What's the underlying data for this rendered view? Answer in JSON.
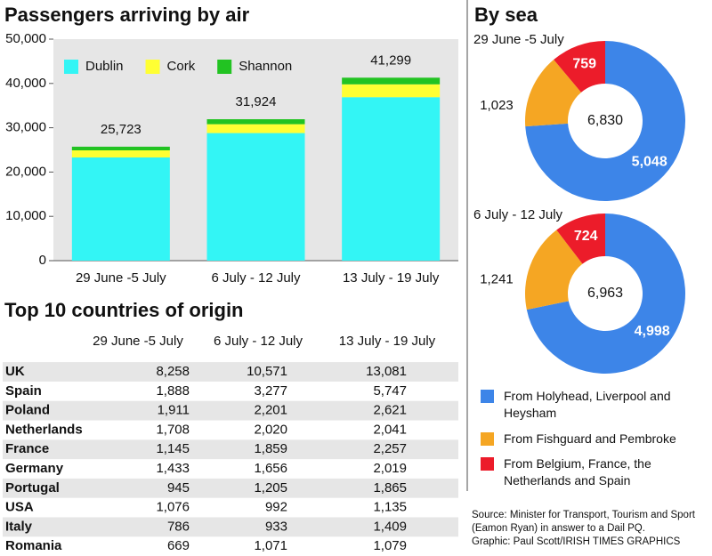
{
  "chart_data": [
    {
      "type": "bar",
      "stacked": true,
      "title": "Passengers arriving by air",
      "categories": [
        "29 June -5 July",
        "6 July - 12 July",
        "13 July - 19 July"
      ],
      "series": [
        {
          "name": "Dublin",
          "color": "#33f5f5",
          "values": [
            23300,
            28800,
            36900
          ]
        },
        {
          "name": "Cork",
          "color": "#ffff33",
          "values": [
            1600,
            2000,
            2900
          ]
        },
        {
          "name": "Shannon",
          "color": "#22c322",
          "values": [
            823,
            1124,
            1499
          ]
        }
      ],
      "totals": [
        25723,
        31924,
        41299
      ],
      "total_labels": [
        "25,723",
        "31,924",
        "41,299"
      ],
      "ylim": [
        0,
        50000
      ],
      "yticks": [
        0,
        {
          "value": 10000,
          "label": "10,000"
        },
        {
          "value": 20000,
          "label": "20,000"
        },
        {
          "value": 30000,
          "label": "30,000"
        },
        {
          "value": 40000,
          "label": "40,000"
        },
        {
          "value": 50000,
          "label": "50,000"
        }
      ]
    },
    {
      "type": "pie",
      "donut": true,
      "title": "By sea",
      "subtitle": "29 June -5 July",
      "categories": [
        "From Holyhead, Liverpool and Heysham",
        "From Fishguard and Pembroke",
        "From Belgium, France, the Netherlands and Spain"
      ],
      "colors": [
        "#3d85e8",
        "#f5a623",
        "#ec1c2a"
      ],
      "values": [
        5048,
        1023,
        759
      ],
      "value_labels": [
        "5,048",
        "1,023",
        "759"
      ],
      "total": {
        "value": 6830,
        "label": "6,830"
      }
    },
    {
      "type": "pie",
      "donut": true,
      "subtitle": "6 July - 12 July",
      "categories": [
        "From Holyhead, Liverpool and Heysham",
        "From Fishguard and Pembroke",
        "From Belgium, France, the Netherlands and Spain"
      ],
      "colors": [
        "#3d85e8",
        "#f5a623",
        "#ec1c2a"
      ],
      "values": [
        4998,
        1241,
        724
      ],
      "value_labels": [
        "4,998",
        "1,241",
        "724"
      ],
      "total": {
        "value": 6963,
        "label": "6,963"
      }
    }
  ],
  "table": {
    "title": "Top 10 countries of origin",
    "columns": [
      "29 June -5 July",
      "6 July - 12 July",
      "13 July - 19 July"
    ],
    "rows": [
      [
        "UK",
        "8,258",
        "10,571",
        "13,081"
      ],
      [
        "Spain",
        "1,888",
        "3,277",
        "5,747"
      ],
      [
        "Poland",
        "1,911",
        "2,201",
        "2,621"
      ],
      [
        "Netherlands",
        "1,708",
        "2,020",
        "2,041"
      ],
      [
        "France",
        "1,145",
        "1,859",
        "2,257"
      ],
      [
        "Germany",
        "1,433",
        "1,656",
        "2,019"
      ],
      [
        "Portugal",
        "945",
        "1,205",
        "1,865"
      ],
      [
        "USA",
        "1,076",
        "992",
        "1,135"
      ],
      [
        "Italy",
        "786",
        "933",
        "1,409"
      ],
      [
        "Romania",
        "669",
        "1,071",
        "1,079"
      ]
    ]
  },
  "source": "Source: Minister for Transport, Tourism and Sport (Eamon Ryan) in answer to a Dail PQ.",
  "credit": "Graphic: Paul Scott/IRISH TIMES GRAPHICS"
}
